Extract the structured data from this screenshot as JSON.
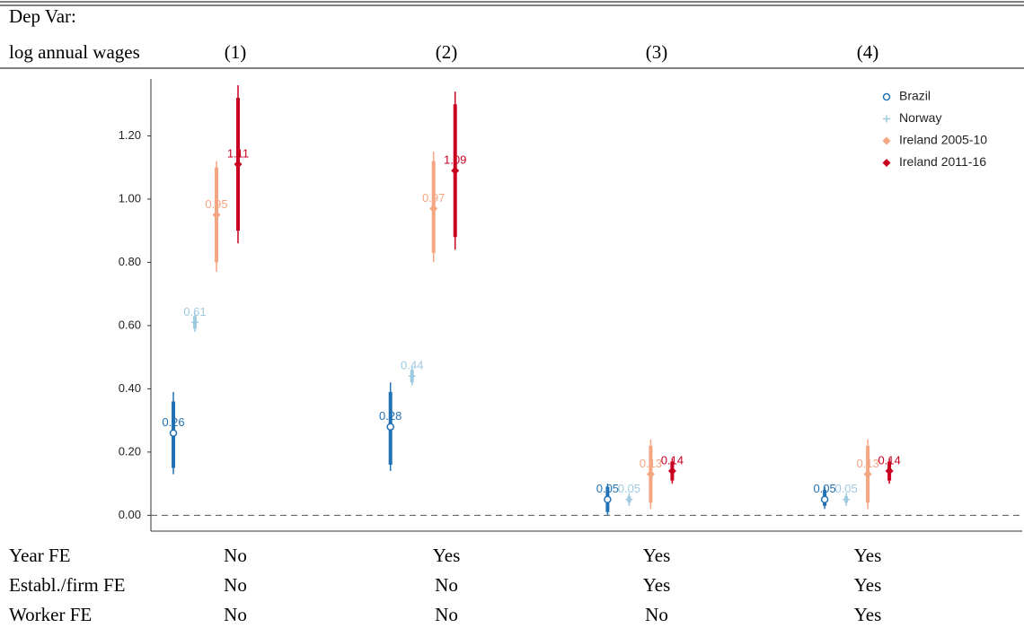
{
  "chart_data": {
    "type": "coefplot",
    "categories": [
      "(1)",
      "(2)",
      "(3)",
      "(4)"
    ],
    "ylim": [
      -0.05,
      1.38
    ],
    "yticks": [
      {
        "value": 0,
        "label": "0.00"
      },
      {
        "value": 0.2,
        "label": "0.20"
      },
      {
        "value": 0.4,
        "label": "0.40"
      },
      {
        "value": 0.6,
        "label": "0.60"
      },
      {
        "value": 0.8,
        "label": "0.80"
      },
      {
        "value": 1.0,
        "label": "1.00"
      },
      {
        "value": 1.2,
        "label": "1.20"
      }
    ],
    "zero_line": true,
    "grid": false,
    "legend": "top-right",
    "series": [
      {
        "name": "Brazil",
        "color": "#2171b5",
        "marker": "circle",
        "values": [
          0.26,
          0.28,
          0.05,
          0.05
        ],
        "value_labels": [
          "0.26",
          "0.28",
          "0.05",
          "0.05"
        ],
        "ci_inner_low": [
          0.15,
          0.16,
          0.01,
          0.03
        ],
        "ci_inner_high": [
          0.36,
          0.39,
          0.09,
          0.08
        ],
        "ci_outer_low": [
          0.13,
          0.14,
          0.0,
          0.02
        ],
        "ci_outer_high": [
          0.39,
          0.42,
          0.1,
          0.09
        ]
      },
      {
        "name": "Norway",
        "color": "#9ecae1",
        "marker": "plus",
        "values": [
          0.61,
          0.44,
          0.05,
          0.05
        ],
        "value_labels": [
          "0.61",
          "0.44",
          "0.05",
          "0.05"
        ],
        "ci_inner_low": [
          0.59,
          0.42,
          0.04,
          0.04
        ],
        "ci_inner_high": [
          0.63,
          0.46,
          0.06,
          0.06
        ],
        "ci_outer_low": [
          0.58,
          0.41,
          0.03,
          0.03
        ],
        "ci_outer_high": [
          0.64,
          0.47,
          0.07,
          0.07
        ]
      },
      {
        "name": "Ireland 2005-10",
        "color": "#f4a582",
        "marker": "diamond",
        "values": [
          0.95,
          0.97,
          0.13,
          0.13
        ],
        "value_labels": [
          "0.95",
          "0.97",
          "0.13",
          "0.13"
        ],
        "ci_inner_low": [
          0.8,
          0.83,
          0.04,
          0.04
        ],
        "ci_inner_high": [
          1.1,
          1.12,
          0.22,
          0.22
        ],
        "ci_outer_low": [
          0.77,
          0.8,
          0.02,
          0.02
        ],
        "ci_outer_high": [
          1.12,
          1.15,
          0.24,
          0.24
        ]
      },
      {
        "name": "Ireland 2011-16",
        "color": "#ca0020",
        "marker": "diamond",
        "values": [
          1.11,
          1.09,
          0.14,
          0.14
        ],
        "value_labels": [
          "1.11",
          "1.09",
          "0.14",
          "0.14"
        ],
        "ci_inner_low": [
          0.9,
          0.88,
          0.11,
          0.11
        ],
        "ci_inner_high": [
          1.32,
          1.3,
          0.17,
          0.17
        ],
        "ci_outer_low": [
          0.86,
          0.84,
          0.1,
          0.1
        ],
        "ci_outer_high": [
          1.36,
          1.34,
          0.18,
          0.18
        ]
      }
    ]
  },
  "table": {
    "dep_var": [
      "Dep Var:",
      "log annual wages"
    ],
    "rows": [
      [
        "Year FE",
        "No",
        "Yes",
        "Yes",
        "Yes"
      ],
      [
        "Establ./firm FE",
        "No",
        "No",
        "Yes",
        "Yes"
      ],
      [
        "Worker FE",
        "No",
        "No",
        "No",
        "Yes"
      ]
    ]
  }
}
